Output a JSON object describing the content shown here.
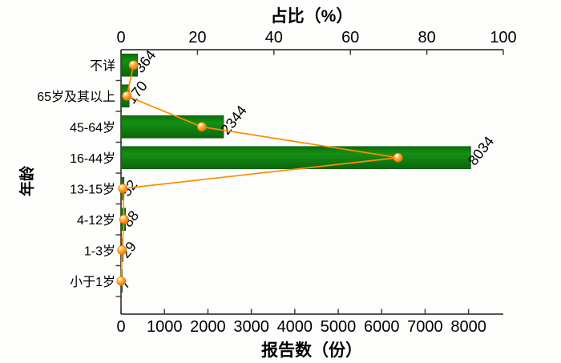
{
  "chart_data": {
    "type": "bar",
    "orientation": "horizontal",
    "description": "Horizontal bar chart of report counts by age group with an overlaid orange line/marker series showing percentage share on the top axis",
    "categories": [
      "不详",
      "65岁及其以上",
      "45-64岁",
      "16-44岁",
      "13-15岁",
      "4-12岁",
      "1-3岁",
      "小于1岁"
    ],
    "series": [
      {
        "name": "报告数",
        "type": "bar",
        "axis": "bottom",
        "values": [
          364,
          170,
          2344,
          8034,
          52,
          88,
          29,
          7
        ],
        "color": "#128212"
      },
      {
        "name": "占比",
        "type": "line",
        "axis": "top",
        "values": [
          3.28,
          1.53,
          21.14,
          72.46,
          0.47,
          0.79,
          0.26,
          0.06
        ],
        "color": "#FF8C00"
      }
    ],
    "bar_value_labels": [
      "364",
      "170",
      "2344",
      "8034",
      "52",
      "88",
      "29",
      "7"
    ],
    "bar_label_color": "#2e8f2e",
    "axes": {
      "top": {
        "title": "占比（%）",
        "min": 0,
        "max": 100,
        "ticks": [
          "0",
          "20",
          "40",
          "60",
          "80",
          "100"
        ],
        "tick_values": [
          0,
          20,
          40,
          60,
          80,
          100
        ]
      },
      "bottom": {
        "title": "报告数（份）",
        "min": 0,
        "max": 8800,
        "ticks": [
          "0",
          "1000",
          "2000",
          "3000",
          "4000",
          "5000",
          "6000",
          "7000",
          "8000"
        ],
        "tick_values": [
          0,
          1000,
          2000,
          3000,
          4000,
          5000,
          6000,
          7000,
          8000
        ]
      },
      "left": {
        "title": "年龄"
      }
    },
    "grid": false,
    "legend": false,
    "colors": {
      "bar_green": "#128212",
      "line_orange": "#FF8C00",
      "axis": "#3d3d3d",
      "label_green": "#2e8f2e"
    }
  }
}
